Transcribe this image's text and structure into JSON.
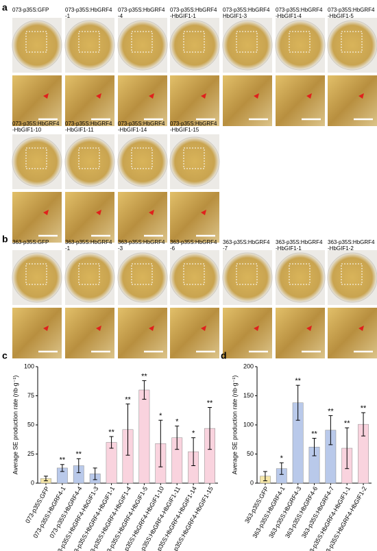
{
  "panel_a": {
    "label": "a",
    "samples": [
      {
        "caption": [
          "073-p35S:GFP"
        ]
      },
      {
        "caption": [
          "073-p35S:HbGRF4",
          "-1"
        ]
      },
      {
        "caption": [
          "073-p35S:HbGRF4",
          "-4"
        ]
      },
      {
        "caption": [
          "073-p35S:HbGRF4",
          "-HbGIF1-1"
        ]
      },
      {
        "caption": [
          "073-p35S:HbGRF4",
          "HbGIF1-3"
        ]
      },
      {
        "caption": [
          "073-p35S:HbGRF4",
          "-HbGIF1-4"
        ]
      },
      {
        "caption": [
          "073-p35S:HbGRF4",
          "-HbGIF1-5"
        ]
      },
      {
        "caption": [
          "073-p35S:HbGRF4",
          "-HbGIF1-10"
        ]
      },
      {
        "caption": [
          "073-p35S:HbGRF4",
          "-HbGIF1-11"
        ]
      },
      {
        "caption": [
          "073-p35S:HbGRF4",
          "-HbGIF1-14"
        ]
      },
      {
        "caption": [
          "073-p35S:HbGRF4",
          "-HbGIF1-15"
        ]
      }
    ]
  },
  "panel_b": {
    "label": "b",
    "samples": [
      {
        "caption": [
          "363-p35S:GFP"
        ]
      },
      {
        "caption": [
          "363-p35S:HbGRF4",
          "-1"
        ]
      },
      {
        "caption": [
          "363-p35S:HbGRF4",
          "-3"
        ]
      },
      {
        "caption": [
          "363-p35S:HbGRF4",
          "-6"
        ]
      },
      {
        "caption": [
          "363-p35S:HbGRF4",
          "-7"
        ]
      },
      {
        "caption": [
          "363-p35S:HbGRF4",
          "-HbGIF1-1"
        ]
      },
      {
        "caption": [
          "363-p35S:HbGRF4",
          "-HbGIF1-2"
        ]
      }
    ]
  },
  "chart_data": [
    {
      "type": "bar",
      "panel_label": "c",
      "y_label": "Average SE production rate (nb·g⁻¹)",
      "categories": [
        "073-p35S:GFP",
        "073-p35S:HbGRF4-1",
        "073-p35S:HbGRF4-4",
        "073-p35S:HbGRF4-HbGIF1-3",
        "073-p35S:HbGRF4-HbGIF1-1",
        "073-p35S:HbGRF4-HbGIF1-4",
        "073-p35S:HbGRF4-HbGIF1-5",
        "073-p35S:HbGRF4-HbGIF1-10",
        "073-p35S:HbGRF4-HbGIF1-11",
        "073-p35S:HbGRF4-HbGIF1-14",
        "073-p35S:HbGRF4-HbGIF1-15"
      ],
      "values": [
        4,
        13,
        15,
        8,
        35,
        46,
        80,
        34,
        39,
        27,
        47
      ],
      "errors": [
        2,
        3,
        6,
        5,
        5,
        22,
        8,
        20,
        10,
        12,
        18
      ],
      "annotations": [
        null,
        "**",
        "**",
        null,
        "**",
        "**",
        "**",
        "*",
        "*",
        "*",
        "**"
      ],
      "colors": [
        "#f6e7a9",
        "#b9c9ea",
        "#b9c9ea",
        "#b9c9ea",
        "#f9d3de",
        "#f9d3de",
        "#f9d3de",
        "#f9d3de",
        "#f9d3de",
        "#f9d3de",
        "#f9d3de"
      ],
      "ylim": [
        0,
        100
      ],
      "yticks": [
        0,
        25,
        50,
        75,
        100
      ]
    },
    {
      "type": "bar",
      "panel_label": "d",
      "y_label": "Average SE production rate (nb·g⁻¹)",
      "categories": [
        "363-p35S:GFP",
        "363-p35S:HbGRF4-1",
        "363-p35S:HbGRF4-3",
        "363-p35S:HbGRF4-6",
        "363-p35S:HbGRF4-7",
        "363-p35S:HbGRF4-HbGIF1-1",
        "363-p35S:HbGRF4-HbGIF1-2"
      ],
      "values": [
        12,
        25,
        138,
        62,
        91,
        60,
        101
      ],
      "errors": [
        8,
        10,
        30,
        15,
        25,
        35,
        20
      ],
      "annotations": [
        null,
        "*",
        "**",
        "**",
        "**",
        "**",
        "**"
      ],
      "colors": [
        "#f6e7a9",
        "#b9c9ea",
        "#b9c9ea",
        "#b9c9ea",
        "#b9c9ea",
        "#f9d3de",
        "#f9d3de"
      ],
      "ylim": [
        0,
        200
      ],
      "yticks": [
        0,
        50,
        100,
        150,
        200
      ]
    }
  ]
}
